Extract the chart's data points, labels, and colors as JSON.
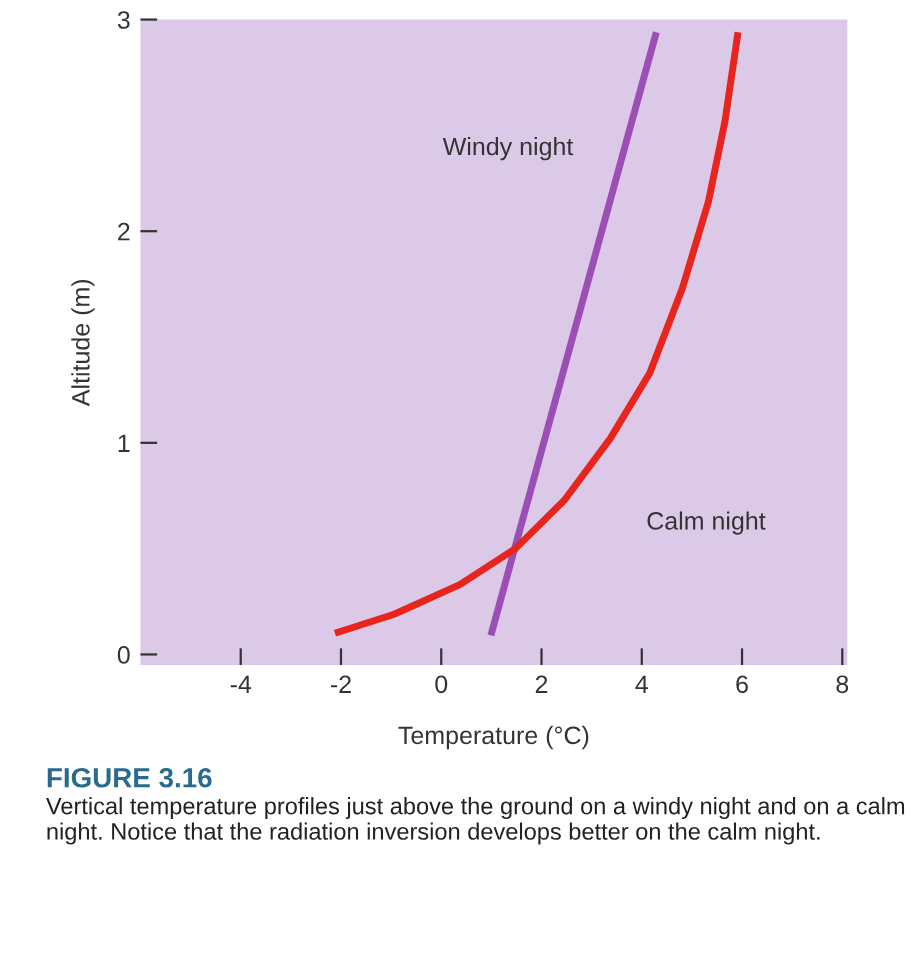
{
  "chart_data": {
    "type": "line",
    "title": "FIGURE 3.16",
    "xlabel": "Temperature (°C)",
    "ylabel": "Altitude (m)",
    "annotations": [
      "Vertical temperature profiles just above the ground on a windy night and on a calm night. Notice that the radiation inversion develops better on the calm night."
    ],
    "series": [
      {
        "name": "Windy night",
        "color": "#9b4fb5",
        "x": [
          0.99,
          4.29
        ],
        "values": [
          0.09,
          2.94
        ]
      },
      {
        "name": "Calm night",
        "color": "#e8251c",
        "x": [
          -2.12,
          -0.94,
          0.37,
          1.48,
          2.46,
          3.37,
          4.16,
          4.81,
          5.33,
          5.66,
          5.92
        ],
        "values": [
          0.1,
          0.19,
          0.33,
          0.5,
          0.73,
          1.02,
          1.33,
          1.73,
          2.14,
          2.52,
          2.94
        ]
      }
    ],
    "xlim": [
      -6,
      8.1
    ],
    "ylim": [
      -0.05,
      3.0
    ],
    "xticks": [
      -4,
      -2,
      0,
      2,
      4,
      6,
      8
    ],
    "yticks": [
      0,
      1,
      2,
      3
    ],
    "grid": false,
    "legend": false,
    "marker": "none",
    "line_style": "solid"
  }
}
